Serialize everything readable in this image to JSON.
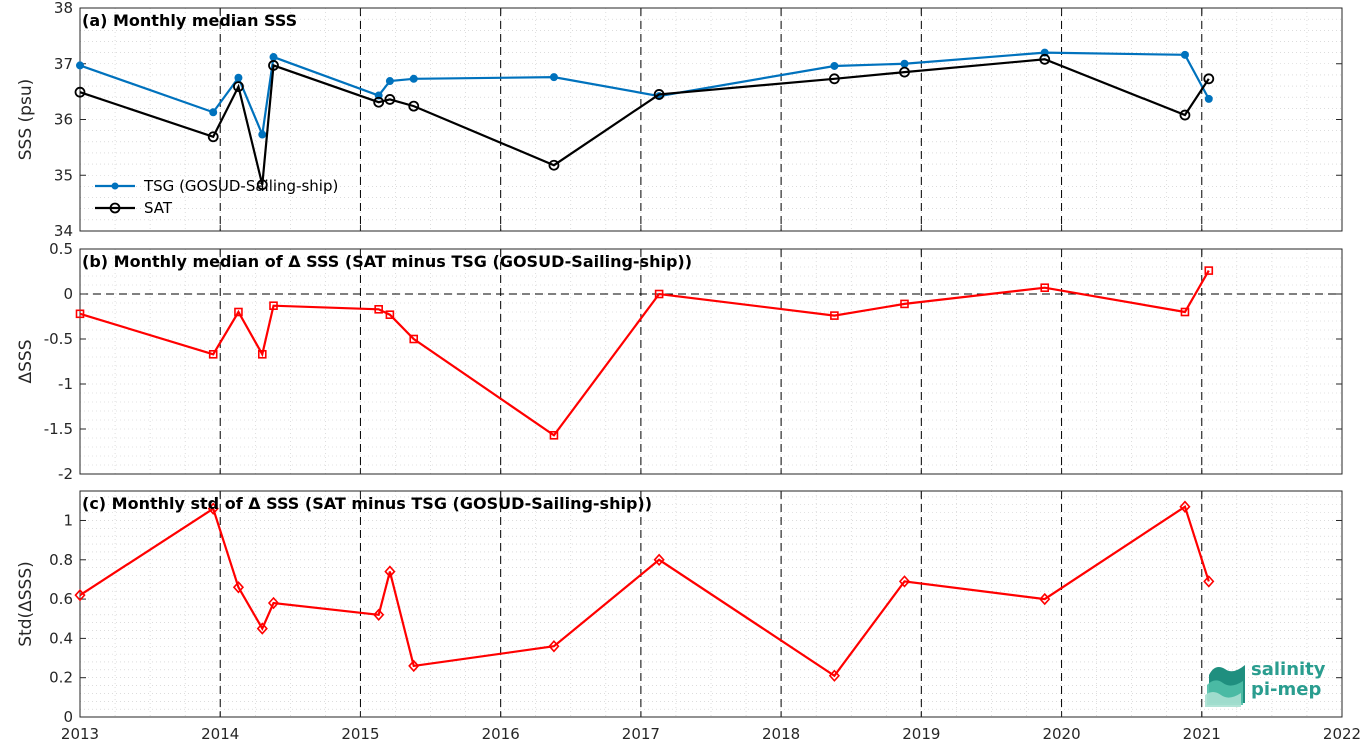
{
  "chart_data": [
    {
      "type": "line",
      "title": "(a) Monthly median SSS",
      "ylabel": "SSS (psu)",
      "ylim": [
        34,
        38
      ],
      "yticks": [
        "34",
        "35",
        "36",
        "37",
        "38"
      ],
      "xlim": [
        2013,
        2022
      ],
      "grid": "dotted minor grid",
      "legend_placement": "lower-left",
      "series": [
        {
          "name": "TSG (GOSUD-Sailing-ship)",
          "color": "#0072BD",
          "marker": "filled-dot",
          "x": [
            2013.0,
            2013.95,
            2014.13,
            2014.3,
            2014.38,
            2015.13,
            2015.21,
            2015.38,
            2016.38,
            2017.13,
            2018.38,
            2018.88,
            2019.88,
            2020.88,
            2021.05
          ],
          "y": [
            36.97,
            36.13,
            36.75,
            35.73,
            37.12,
            36.43,
            36.69,
            36.73,
            36.76,
            36.42,
            36.96,
            37.0,
            37.2,
            37.16,
            36.37
          ]
        },
        {
          "name": "SAT",
          "color": "#000000",
          "marker": "open-circle",
          "x": [
            2013.0,
            2013.95,
            2014.13,
            2014.3,
            2014.38,
            2015.13,
            2015.21,
            2015.38,
            2016.38,
            2017.13,
            2018.38,
            2018.88,
            2019.88,
            2020.88,
            2021.05
          ],
          "y": [
            36.49,
            35.69,
            36.59,
            34.83,
            36.97,
            36.31,
            36.36,
            36.24,
            35.18,
            36.45,
            36.73,
            36.85,
            37.08,
            36.08,
            36.73
          ]
        }
      ]
    },
    {
      "type": "line",
      "title": "(b) Monthly median of Δ SSS (SAT minus TSG (GOSUD-Sailing-ship))",
      "ylabel": "ΔSSS",
      "ylim": [
        -2,
        0.5
      ],
      "yticks": [
        "-2",
        "-1.5",
        "-1",
        "-0.5",
        "0",
        "0.5"
      ],
      "xlim": [
        2013,
        2022
      ],
      "zero_line": "dashed",
      "series": [
        {
          "color": "#FF0000",
          "marker": "open-square",
          "x": [
            2013.0,
            2013.95,
            2014.13,
            2014.3,
            2014.38,
            2015.13,
            2015.21,
            2015.38,
            2016.38,
            2017.13,
            2018.38,
            2018.88,
            2019.88,
            2020.88,
            2021.05
          ],
          "y": [
            -0.22,
            -0.67,
            -0.2,
            -0.67,
            -0.13,
            -0.17,
            -0.23,
            -0.5,
            -1.57,
            0.0,
            -0.24,
            -0.11,
            0.07,
            -0.2,
            0.26
          ]
        }
      ]
    },
    {
      "type": "line",
      "title": "(c) Monthly std of Δ SSS (SAT minus TSG (GOSUD-Sailing-ship))",
      "ylabel": "Std(ΔSSS)",
      "ylim": [
        0,
        1.15
      ],
      "yticks": [
        "0",
        "0.2",
        "0.4",
        "0.6",
        "0.8",
        "1"
      ],
      "xlim": [
        2013,
        2022
      ],
      "xticks": [
        "2013",
        "2014",
        "2015",
        "2016",
        "2017",
        "2018",
        "2019",
        "2020",
        "2021",
        "2022"
      ],
      "series": [
        {
          "color": "#FF0000",
          "marker": "open-diamond",
          "x": [
            2013.0,
            2013.95,
            2014.13,
            2014.3,
            2014.38,
            2015.13,
            2015.21,
            2015.38,
            2016.38,
            2017.13,
            2018.38,
            2018.88,
            2019.88,
            2020.88,
            2021.05
          ],
          "y": [
            0.62,
            1.06,
            0.66,
            0.45,
            0.58,
            0.52,
            0.74,
            0.26,
            0.36,
            0.8,
            0.21,
            0.69,
            0.6,
            1.07,
            0.69
          ]
        }
      ]
    }
  ],
  "logo": {
    "line1": "salinity",
    "line2": "pi-mep"
  }
}
